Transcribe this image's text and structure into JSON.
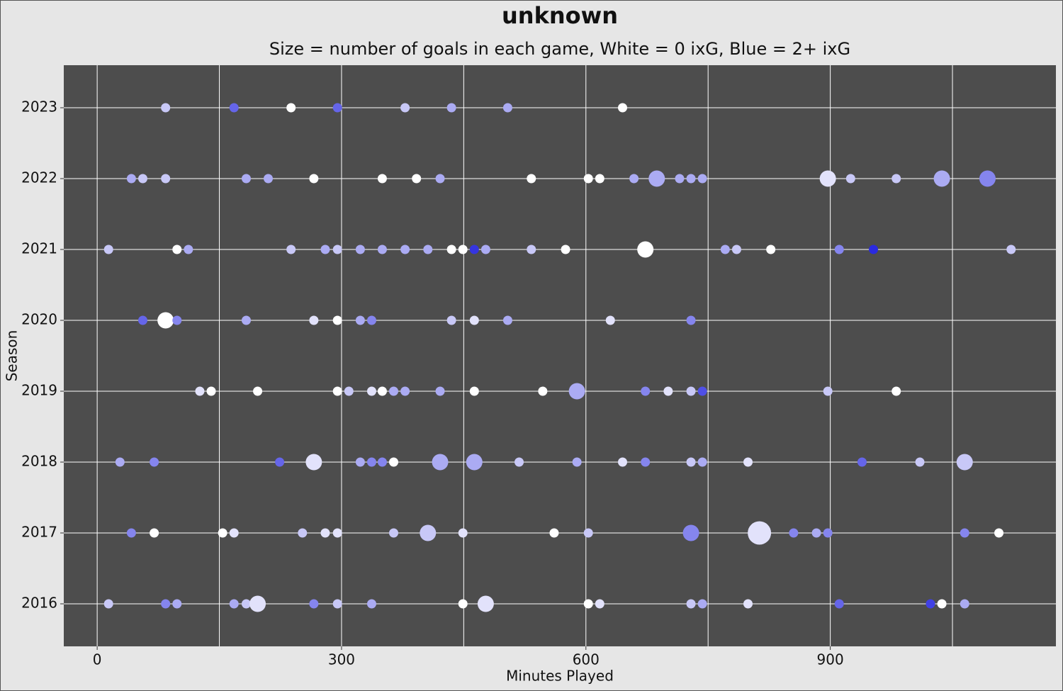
{
  "chart_data": {
    "type": "scatter",
    "title": "unknown",
    "subtitle": "Size = number of goals in each game, White = 0 ixG, Blue = 2+ ixG",
    "x_label": "Minutes Played",
    "y_label": "Season",
    "xlim": [
      -41,
      1177
    ],
    "xticks": [
      0,
      300,
      600,
      900
    ],
    "x_minor_ticks": [
      150,
      450,
      750,
      1050
    ],
    "ylim": [
      2015.4,
      2023.6
    ],
    "yticks": [
      2016,
      2017,
      2018,
      2019,
      2020,
      2021,
      2022,
      2023
    ],
    "grid": true,
    "series": [
      {
        "y": 2023,
        "x": [
          84,
          168,
          238,
          295,
          378,
          435,
          504,
          645
        ],
        "sizes": [
          1,
          1,
          1,
          1,
          1,
          1,
          1,
          1
        ],
        "colors": [
          "#c8c8f7",
          "#6565e9",
          "#ffffff",
          "#6565e9",
          "#c8c8f7",
          "#ababf3",
          "#ababf3",
          "#ffffff"
        ]
      },
      {
        "y": 2022,
        "x": [
          42,
          56,
          84,
          183,
          210,
          266,
          350,
          392,
          421,
          533,
          603,
          617,
          659,
          687,
          715,
          729,
          743,
          897,
          925,
          981,
          1037,
          1093
        ],
        "sizes": [
          1,
          1,
          1,
          1,
          1,
          1,
          1,
          1,
          1,
          1,
          1,
          1,
          1,
          2,
          1,
          1,
          1,
          2,
          1,
          1,
          2,
          2
        ],
        "colors": [
          "#ababf3",
          "#c8c8f7",
          "#c8c8f7",
          "#ababf3",
          "#ababf3",
          "#ffffff",
          "#ffffff",
          "#ffffff",
          "#ababf3",
          "#ffffff",
          "#ffffff",
          "#ffffff",
          "#ababf3",
          "#ababf3",
          "#ababf3",
          "#ababf3",
          "#ababf3",
          "#e2e2fb",
          "#c8c8f7",
          "#c8c8f7",
          "#ababf3",
          "#8585ee"
        ]
      },
      {
        "y": 2021,
        "x": [
          14,
          98,
          112,
          238,
          280,
          295,
          323,
          350,
          378,
          406,
          435,
          449,
          463,
          477,
          533,
          575,
          673,
          771,
          785,
          827,
          911,
          953,
          1122
        ],
        "sizes": [
          1,
          1,
          1,
          1,
          1,
          1,
          1,
          1,
          1,
          1,
          1,
          1,
          1,
          1,
          1,
          1,
          2,
          1,
          1,
          1,
          1,
          1,
          1
        ],
        "colors": [
          "#c8c8f7",
          "#ffffff",
          "#ababf3",
          "#c8c8f7",
          "#ababf3",
          "#c8c8f7",
          "#ababf3",
          "#ababf3",
          "#ababf3",
          "#ababf3",
          "#ffffff",
          "#ffffff",
          "#3535e0",
          "#ababf3",
          "#c8c8f7",
          "#ffffff",
          "#ffffff",
          "#ababf3",
          "#c8c8f7",
          "#ffffff",
          "#8585ee",
          "#2a2ae0",
          "#c8c8f7"
        ]
      },
      {
        "y": 2020,
        "x": [
          56,
          84,
          98,
          183,
          266,
          295,
          323,
          337,
          435,
          463,
          504,
          630,
          729
        ],
        "sizes": [
          1,
          2,
          1,
          1,
          1,
          1,
          1,
          1,
          1,
          1,
          1,
          1,
          1
        ],
        "colors": [
          "#6565e9",
          "#ffffff",
          "#8585ee",
          "#ababf3",
          "#e2e2fb",
          "#ffffff",
          "#ababf3",
          "#8585ee",
          "#c8c8f7",
          "#e2e2fb",
          "#ababf3",
          "#e2e2fb",
          "#8585ee"
        ]
      },
      {
        "y": 2019,
        "x": [
          126,
          140,
          197,
          295,
          309,
          337,
          350,
          364,
          378,
          421,
          463,
          547,
          589,
          673,
          701,
          729,
          743,
          897,
          981
        ],
        "sizes": [
          1,
          1,
          1,
          1,
          1,
          1,
          1,
          1,
          1,
          1,
          1,
          1,
          2,
          1,
          1,
          1,
          1,
          1,
          1
        ],
        "colors": [
          "#e2e2fb",
          "#ffffff",
          "#ffffff",
          "#ffffff",
          "#c8c8f7",
          "#e2e2fb",
          "#ffffff",
          "#ababf3",
          "#ababf3",
          "#ababf3",
          "#ffffff",
          "#ffffff",
          "#ababf3",
          "#8585ee",
          "#e2e2fb",
          "#c8c8f7",
          "#5050e8",
          "#c8c8f7",
          "#ffffff"
        ]
      },
      {
        "y": 2018,
        "x": [
          28,
          70,
          224,
          266,
          323,
          337,
          350,
          364,
          421,
          463,
          518,
          589,
          645,
          673,
          729,
          743,
          799,
          939,
          1010,
          1065
        ],
        "sizes": [
          1,
          1,
          1,
          2,
          1,
          1,
          1,
          1,
          2,
          2,
          1,
          1,
          1,
          1,
          1,
          1,
          1,
          1,
          1,
          2
        ],
        "colors": [
          "#ababf3",
          "#8585ee",
          "#6565e9",
          "#e2e2fb",
          "#ababf3",
          "#8585ee",
          "#8585ee",
          "#ffffff",
          "#ababf3",
          "#ababf3",
          "#c8c8f7",
          "#ababf3",
          "#e2e2fb",
          "#8585ee",
          "#c8c8f7",
          "#ababf3",
          "#e2e2fb",
          "#6565e9",
          "#c8c8f7",
          "#c8c8f7"
        ]
      },
      {
        "y": 2017,
        "x": [
          42,
          70,
          154,
          168,
          252,
          280,
          295,
          364,
          406,
          449,
          561,
          603,
          729,
          813,
          855,
          883,
          897,
          1065,
          1107
        ],
        "sizes": [
          1,
          1,
          1,
          1,
          1,
          1,
          1,
          1,
          2,
          1,
          1,
          1,
          2,
          3,
          1,
          1,
          1,
          1,
          1
        ],
        "colors": [
          "#8585ee",
          "#ffffff",
          "#ffffff",
          "#e2e2fb",
          "#c8c8f7",
          "#e2e2fb",
          "#e2e2fb",
          "#c8c8f7",
          "#c8c8f7",
          "#e2e2fb",
          "#ffffff",
          "#c8c8f7",
          "#8585ee",
          "#e2e2fb",
          "#8585ee",
          "#ababf3",
          "#8585ee",
          "#8585ee",
          "#ffffff"
        ]
      },
      {
        "y": 2016,
        "x": [
          14,
          84,
          98,
          168,
          183,
          197,
          266,
          295,
          337,
          449,
          477,
          603,
          617,
          729,
          743,
          799,
          911,
          1023,
          1037,
          1065
        ],
        "sizes": [
          1,
          1,
          1,
          1,
          1,
          2,
          1,
          1,
          1,
          1,
          2,
          1,
          1,
          1,
          1,
          1,
          1,
          1,
          1,
          1
        ],
        "colors": [
          "#c8c8f7",
          "#8585ee",
          "#ababf3",
          "#ababf3",
          "#c8c8f7",
          "#e2e2fb",
          "#8585ee",
          "#c8c8f7",
          "#ababf3",
          "#ffffff",
          "#e2e2fb",
          "#ffffff",
          "#e2e2fb",
          "#c8c8f7",
          "#ababf3",
          "#e2e2fb",
          "#6565e9",
          "#4040e4",
          "#ffffff",
          "#ababf3"
        ]
      }
    ]
  }
}
